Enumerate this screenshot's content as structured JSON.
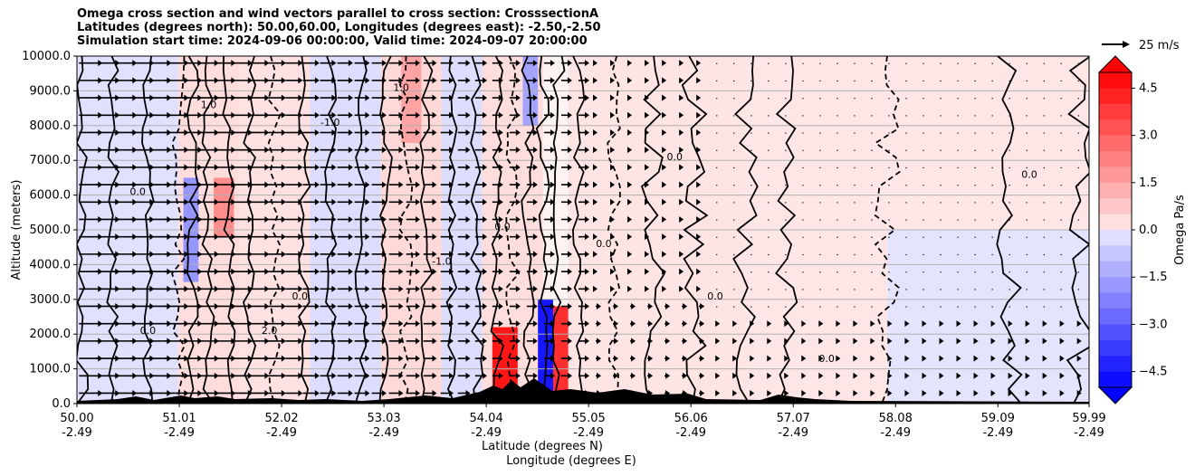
{
  "chart_data": {
    "type": "heatmap",
    "title_lines": [
      "Omega cross section and wind vectors parallel to cross section: CrosssectionA",
      "Latitudes (degrees north): 50.00,60.00, Longitudes (degrees east): -2.50,-2.50",
      "Simulation start time: 2024-09-06 00:00:00, Valid time: 2024-09-07 20:00:00"
    ],
    "ylabel": "Altitude (meters)",
    "xlabel_lines": [
      "Latitude (degrees N)",
      "Longitude (degrees E)"
    ],
    "ylim": [
      0,
      10000
    ],
    "y_ticks": [
      "0.0",
      "1000.0",
      "2000.0",
      "3000.0",
      "4000.0",
      "5000.0",
      "6000.0",
      "7000.0",
      "8000.0",
      "9000.0",
      "10000.0"
    ],
    "y_tick_values": [
      0,
      1000,
      2000,
      3000,
      4000,
      5000,
      6000,
      7000,
      8000,
      9000,
      10000
    ],
    "x_range": [
      50.0,
      59.99
    ],
    "x_tick_values": [
      50.0,
      51.01,
      52.02,
      53.03,
      54.04,
      55.05,
      56.06,
      57.07,
      58.08,
      59.09,
      59.99
    ],
    "x_ticks_lat": [
      "50.00",
      "51.01",
      "52.02",
      "53.03",
      "54.04",
      "55.05",
      "56.06",
      "57.07",
      "58.08",
      "59.09",
      "59.99"
    ],
    "x_ticks_lon": [
      "-2.49",
      "-2.49",
      "-2.49",
      "-2.49",
      "-2.49",
      "-2.49",
      "-2.49",
      "-2.49",
      "-2.49",
      "-2.49",
      "-2.49"
    ],
    "colorbar": {
      "label": "Omega Pa/s",
      "range": [
        -5.0,
        5.0
      ],
      "ticks": [
        "4.5",
        "3.0",
        "1.5",
        "0.0",
        "−1.5",
        "−3.0",
        "−4.5"
      ],
      "tick_values": [
        4.5,
        3.0,
        1.5,
        0.0,
        -1.5,
        -3.0,
        -4.5
      ],
      "positive_color": "#ff0000",
      "negative_color": "#0000ff",
      "neutral_color": "#ffffff"
    },
    "vector_key": "25 m/s",
    "contour_labels": [
      "0.0",
      "1.0",
      "-1.0",
      "2.0"
    ],
    "regions": [
      {
        "x0": 50.0,
        "x1": 51.0,
        "y0": 0,
        "y1": 10000,
        "omega": -0.2
      },
      {
        "x0": 51.0,
        "x1": 51.6,
        "y0": 0,
        "y1": 10000,
        "omega": 0.3
      },
      {
        "x0": 51.05,
        "x1": 51.2,
        "y0": 3500,
        "y1": 6500,
        "omega": -1.8
      },
      {
        "x0": 51.35,
        "x1": 51.55,
        "y0": 4800,
        "y1": 6500,
        "omega": 2.0
      },
      {
        "x0": 51.6,
        "x1": 52.3,
        "y0": 0,
        "y1": 10000,
        "omega": 0.2
      },
      {
        "x0": 52.3,
        "x1": 53.0,
        "y0": 0,
        "y1": 10000,
        "omega": -0.3
      },
      {
        "x0": 53.0,
        "x1": 53.6,
        "y0": 0,
        "y1": 10000,
        "omega": 0.4
      },
      {
        "x0": 53.2,
        "x1": 53.4,
        "y0": 7500,
        "y1": 10000,
        "omega": 1.5
      },
      {
        "x0": 53.6,
        "x1": 54.0,
        "y0": 0,
        "y1": 10000,
        "omega": -0.3
      },
      {
        "x0": 54.0,
        "x1": 54.6,
        "y0": 0,
        "y1": 10000,
        "omega": 0.3
      },
      {
        "x0": 54.1,
        "x1": 54.35,
        "y0": 0,
        "y1": 2200,
        "omega": 4.5
      },
      {
        "x0": 54.4,
        "x1": 54.55,
        "y0": 8000,
        "y1": 10000,
        "omega": -1.5
      },
      {
        "x0": 54.55,
        "x1": 54.7,
        "y0": 0,
        "y1": 3000,
        "omega": -4.5
      },
      {
        "x0": 54.7,
        "x1": 54.85,
        "y0": 0,
        "y1": 2800,
        "omega": 4.0
      },
      {
        "x0": 54.85,
        "x1": 56.6,
        "y0": 0,
        "y1": 10000,
        "omega": 0.15
      },
      {
        "x0": 56.6,
        "x1": 58.0,
        "y0": 0,
        "y1": 10000,
        "omega": 0.1
      },
      {
        "x0": 58.0,
        "x1": 59.99,
        "y0": 0,
        "y1": 5000,
        "omega": -0.15
      },
      {
        "x0": 58.0,
        "x1": 59.99,
        "y0": 5000,
        "y1": 10000,
        "omega": 0.1
      }
    ]
  }
}
